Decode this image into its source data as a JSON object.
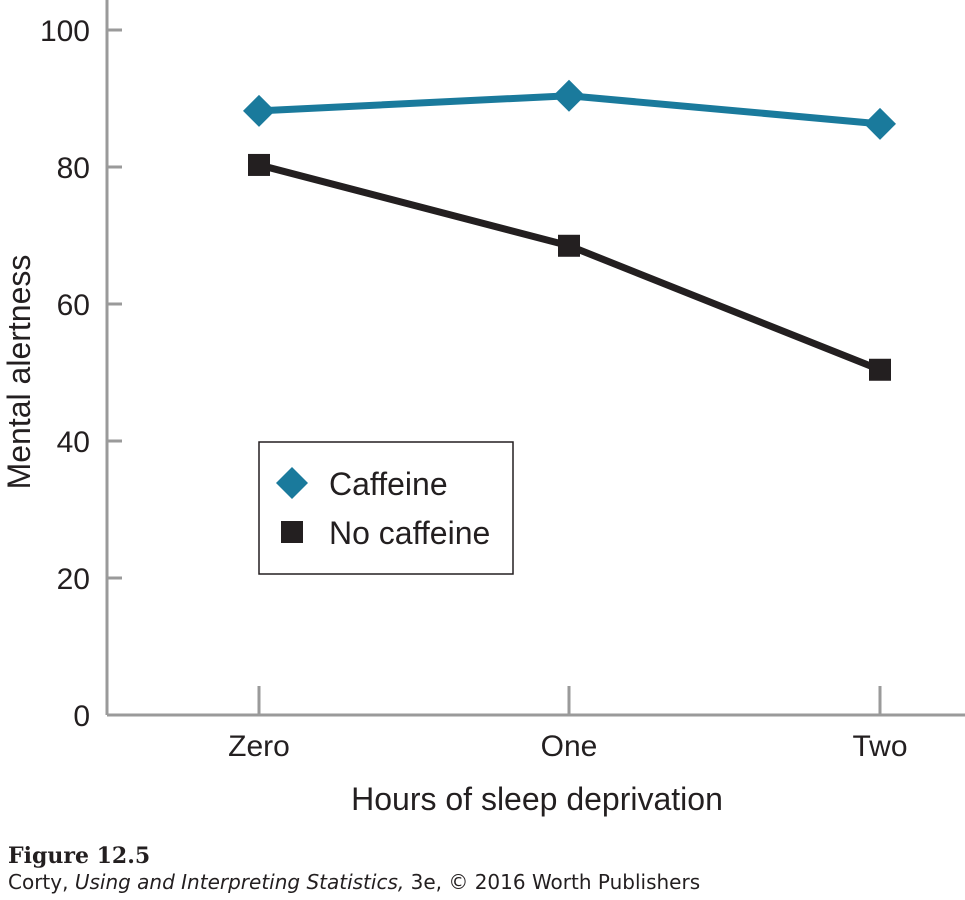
{
  "chart_data": {
    "type": "line",
    "categories": [
      "Zero",
      "One",
      "Two"
    ],
    "series": [
      {
        "name": "Caffeine",
        "values": [
          88.2,
          90.4,
          86.3
        ],
        "color": "#1a7a9c",
        "marker": "diamond"
      },
      {
        "name": "No caffeine",
        "values": [
          80.3,
          68.5,
          50.4
        ],
        "color": "#231f20",
        "marker": "square"
      }
    ],
    "title": "",
    "xlabel": "Hours of sleep deprivation",
    "ylabel": "Mental alertness",
    "ylim": [
      0,
      100
    ],
    "yticks": [
      0,
      20,
      40,
      60,
      80,
      100
    ],
    "grid": false,
    "legend_position": "lower-left"
  },
  "figure": {
    "label": "Figure 12.5",
    "credit_prefix": "Corty, ",
    "credit_book": "Using and Interpreting Statistics,",
    "credit_suffix": " 3e, © 2016 Worth Publishers"
  }
}
